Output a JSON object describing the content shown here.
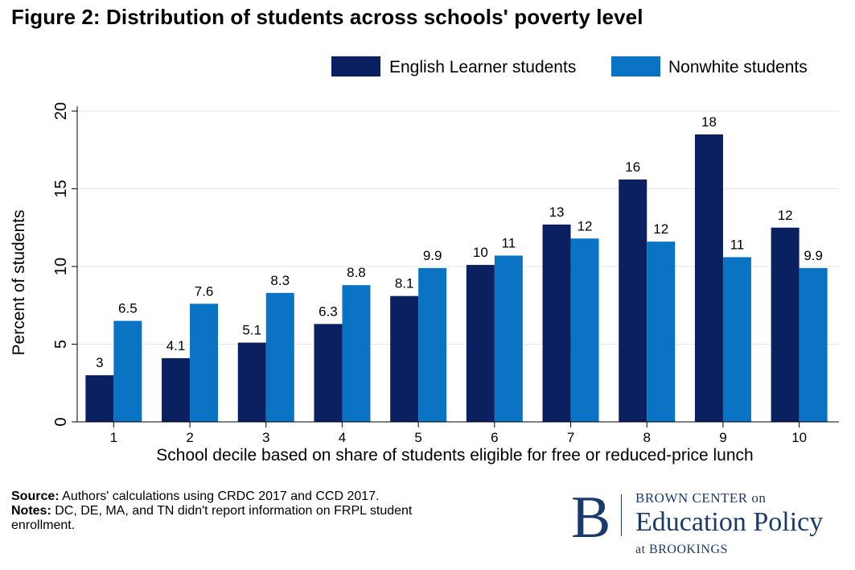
{
  "figure": {
    "title": "Figure 2: Distribution of students across schools' poverty level"
  },
  "chart_data": {
    "type": "bar",
    "categories": [
      "1",
      "2",
      "3",
      "4",
      "5",
      "6",
      "7",
      "8",
      "9",
      "10"
    ],
    "series": [
      {
        "name": "English Learner students",
        "color": "#0b2060",
        "values": [
          3.0,
          4.1,
          5.1,
          6.3,
          8.1,
          10.1,
          12.7,
          15.6,
          18.5,
          12.5
        ],
        "labels": [
          "3",
          "4.1",
          "5.1",
          "6.3",
          "8.1",
          "10",
          "13",
          "16",
          "18",
          "12"
        ]
      },
      {
        "name": "Nonwhite students",
        "color": "#0a73c4",
        "values": [
          6.5,
          7.6,
          8.3,
          8.8,
          9.9,
          10.7,
          11.8,
          11.6,
          10.6,
          9.9
        ],
        "labels": [
          "6.5",
          "7.6",
          "8.3",
          "8.8",
          "9.9",
          "11",
          "12",
          "12",
          "11",
          "9.9"
        ]
      }
    ],
    "title": "Figure 2: Distribution of students across schools' poverty level",
    "xlabel": "School decile based on share of students eligible for free or reduced-price lunch",
    "ylabel": "Percent of students",
    "ylim": [
      0,
      20
    ],
    "yticks": [
      "0",
      "5",
      "10",
      "15",
      "20"
    ],
    "ytick_values": [
      0,
      5,
      10,
      15,
      20
    ],
    "grid": true,
    "legend_position": "top-right"
  },
  "footer": {
    "source_label": "Source:",
    "source_text": " Authors' calculations using CRDC 2017 and CCD 2017.",
    "notes_label": "Notes:",
    "notes_text": " DC, DE, MA, and TN didn't report information on FRPL student enrollment."
  },
  "logo": {
    "letter": "B",
    "line1": "BROWN CENTER on",
    "line2": "Education Policy",
    "line3": "at BROOKINGS",
    "color": "#1b3a6b"
  }
}
